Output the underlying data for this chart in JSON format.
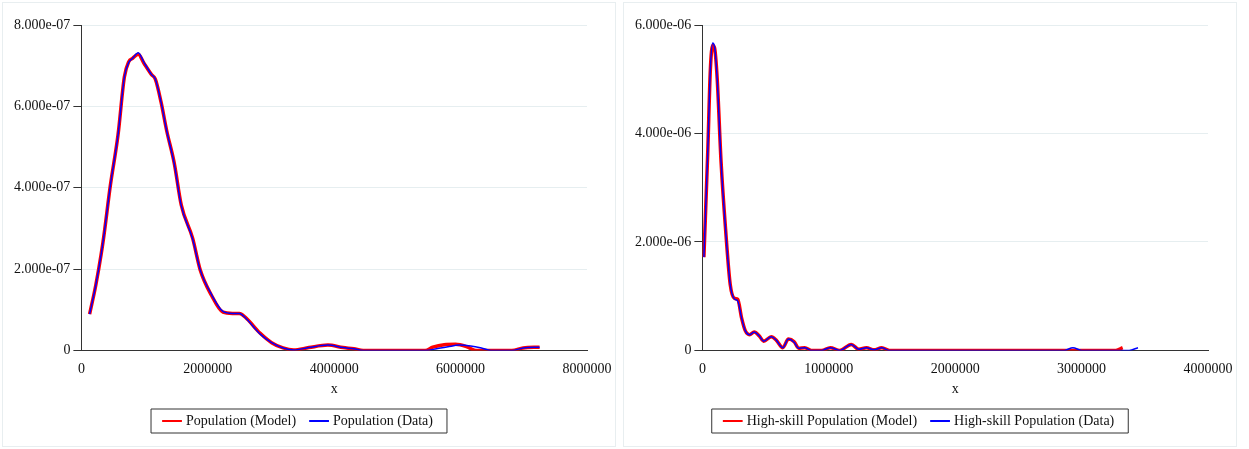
{
  "chart_data": [
    {
      "type": "line",
      "xlabel": "x",
      "xlim": [
        0,
        8000000
      ],
      "xticks": [
        0,
        2000000,
        4000000,
        6000000,
        8000000
      ],
      "ylim": [
        0,
        8e-07
      ],
      "yticks": [
        0,
        {
          "value": 2e-07,
          "label": "2.000e-07"
        },
        {
          "value": 4e-07,
          "label": "4.000e-07"
        },
        {
          "value": 6e-07,
          "label": "6.000e-07"
        },
        {
          "value": 8e-07,
          "label": "8.000e-07"
        }
      ],
      "grid": "y",
      "legend": "bottom",
      "marker": "none",
      "line_style": "solid",
      "series": [
        {
          "name": "Population (Model)",
          "color": "#ff0000",
          "x": [
            130000,
            230000,
            340000,
            460000,
            580000,
            680000,
            750000,
            810000,
            900000,
            990000,
            1110000,
            1170000,
            1260000,
            1350000,
            1470000,
            1580000,
            1760000,
            1880000,
            2060000,
            2240000,
            2390000,
            2500000,
            2590000,
            2830000,
            3010000,
            3190000,
            3360000,
            3600000,
            3900000,
            4140000,
            4310000,
            4460000,
            5440000,
            5560000,
            5740000,
            5920000,
            6100000,
            6240000,
            6810000,
            6990000,
            7250000
          ],
          "values": [
            8.9e-08,
            1.62e-07,
            2.64e-07,
            4.07e-07,
            5.3e-07,
            6.72e-07,
            7.1e-07,
            7.18e-07,
            7.28e-07,
            7.06e-07,
            6.78e-07,
            6.67e-07,
            6.11e-07,
            5.4e-07,
            4.6e-07,
            3.58e-07,
            2.76e-07,
            1.98e-07,
            1.35e-07,
            9.4e-08,
            9.1e-08,
            9.1e-08,
            8.2e-08,
            4.2e-08,
            1.9e-08,
            6e-09,
            1e-09,
            7e-09,
            1.3e-08,
            7e-09,
            4e-09,
            0,
            0,
            8e-09,
            1.4e-08,
            1.5e-08,
            9e-09,
            0,
            0,
            6e-09,
            8e-09
          ]
        },
        {
          "name": "Population (Data)",
          "color": "#0000ff",
          "x": [
            130000,
            230000,
            340000,
            460000,
            580000,
            680000,
            750000,
            810000,
            900000,
            990000,
            1110000,
            1170000,
            1260000,
            1350000,
            1470000,
            1580000,
            1760000,
            1880000,
            2060000,
            2240000,
            2390000,
            2500000,
            2590000,
            2830000,
            3010000,
            3190000,
            3360000,
            3600000,
            3900000,
            4140000,
            4310000,
            4460000,
            5440000,
            5620000,
            5800000,
            5980000,
            6160000,
            6330000,
            6480000,
            6810000,
            6990000,
            7250000
          ],
          "values": [
            8.9e-08,
            1.62e-07,
            2.64e-07,
            4.07e-07,
            5.3e-07,
            6.72e-07,
            7.08e-07,
            7.18e-07,
            7.32e-07,
            7.08e-07,
            6.78e-07,
            6.67e-07,
            6.11e-07,
            5.4e-07,
            4.58e-07,
            3.56e-07,
            2.74e-07,
            1.98e-07,
            1.37e-07,
            9.6e-08,
            9.1e-08,
            9.1e-08,
            8.1e-08,
            4e-08,
            1.9e-08,
            6e-09,
            1e-09,
            7e-09,
            1.3e-08,
            7e-09,
            4e-09,
            0,
            0,
            4e-09,
            9e-09,
            1.3e-08,
            1.1e-08,
            6e-09,
            0,
            0,
            6e-09,
            8e-09
          ]
        }
      ]
    },
    {
      "type": "line",
      "xlabel": "x",
      "xlim": [
        0,
        4000000
      ],
      "xticks": [
        0,
        1000000,
        2000000,
        3000000,
        4000000
      ],
      "ylim": [
        0,
        6e-06
      ],
      "yticks": [
        0,
        {
          "value": 2e-06,
          "label": "2.000e-06"
        },
        {
          "value": 4e-06,
          "label": "4.000e-06"
        },
        {
          "value": 6e-06,
          "label": "6.000e-06"
        }
      ],
      "grid": "y",
      "legend": "bottom",
      "marker": "none",
      "line_style": "solid",
      "series": [
        {
          "name": "High-skill Population (Model)",
          "color": "#ff0000",
          "x": [
            12000,
            42000,
            63000,
            81000,
            96000,
            117000,
            148000,
            184000,
            220000,
            253000,
            280000,
            310000,
            340000,
            373000,
            410000,
            449000,
            485000,
            545000,
            584000,
            636000,
            681000,
            726000,
            762000,
            810000,
            861000,
            943000,
            1012000,
            1087000,
            1178000,
            1238000,
            1298000,
            1358000,
            1419000,
            1479000,
            3271000,
            3325000
          ],
          "values": [
            1.72e-06,
            3.62e-06,
            5.17e-06,
            5.62e-06,
            5.58e-06,
            5.02e-06,
            3.47e-06,
            2.22e-06,
            1.22e-06,
            9.6e-07,
            9.4e-07,
            6e-07,
            3.6e-07,
            2.9e-07,
            3.4e-07,
            2.7e-07,
            1.7e-07,
            2.5e-07,
            1.9e-07,
            5e-08,
            2.1e-07,
            1.6e-07,
            4e-08,
            5e-08,
            0,
            0,
            5e-08,
            0,
            1.1e-07,
            2e-08,
            5e-08,
            1e-08,
            5e-08,
            0,
            0,
            5e-08
          ]
        },
        {
          "name": "High-skill Population (Data)",
          "color": "#0000ff",
          "x": [
            12000,
            42000,
            63000,
            81000,
            96000,
            117000,
            148000,
            184000,
            220000,
            253000,
            280000,
            310000,
            340000,
            373000,
            410000,
            449000,
            485000,
            545000,
            584000,
            636000,
            681000,
            726000,
            762000,
            810000,
            861000,
            943000,
            1012000,
            1087000,
            1178000,
            1238000,
            1298000,
            1358000,
            1419000,
            1479000,
            2864000,
            2931000,
            3000000,
            3376000,
            3446000
          ],
          "values": [
            1.72e-06,
            3.62e-06,
            5.17e-06,
            5.67e-06,
            5.6e-06,
            5.02e-06,
            3.47e-06,
            2.22e-06,
            1.22e-06,
            9.5e-07,
            9.1e-07,
            6e-07,
            3.6e-07,
            2.9e-07,
            3.4e-07,
            2.7e-07,
            1.7e-07,
            2.5e-07,
            1.9e-07,
            5e-08,
            2.1e-07,
            1.5e-07,
            4e-08,
            5e-08,
            0,
            0,
            5e-08,
            0,
            1.1e-07,
            2e-08,
            5e-08,
            1e-08,
            5e-08,
            0,
            0,
            5e-08,
            0,
            0,
            5e-08
          ]
        }
      ]
    }
  ]
}
